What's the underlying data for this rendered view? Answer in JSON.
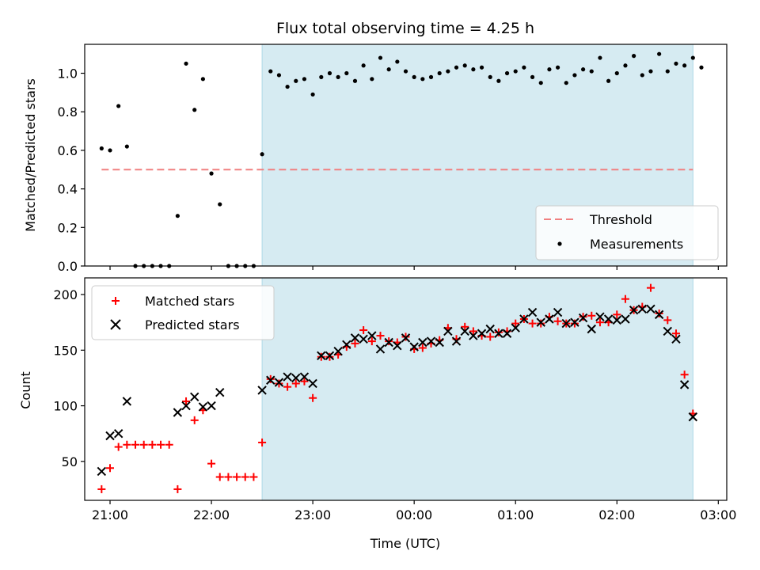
{
  "chart_data": [
    {
      "type": "scatter",
      "title": "Flux total observing time = 4.25 h",
      "xlabel": "",
      "ylabel": "Matched/Predicted stars",
      "ylim": [
        0,
        1.15
      ],
      "yticks": [
        "0.0",
        "0.2",
        "0.4",
        "0.6",
        "0.8",
        "1.0"
      ],
      "xlim": [
        "20:45",
        "03:05"
      ],
      "observing_window": [
        "22:30",
        "02:45"
      ],
      "legend_position": "lower-right",
      "threshold": {
        "name": "Threshold",
        "value": 0.5,
        "x": [
          "20:55",
          "02:45"
        ],
        "color": "#f08080"
      },
      "series": [
        {
          "name": "Measurements",
          "color": "#000000",
          "points": [
            [
              "20:55",
              0.61
            ],
            [
              "21:00",
              0.6
            ],
            [
              "21:05",
              0.83
            ],
            [
              "21:10",
              0.62
            ],
            [
              "21:15",
              0.0
            ],
            [
              "21:20",
              0.0
            ],
            [
              "21:25",
              0.0
            ],
            [
              "21:30",
              0.0
            ],
            [
              "21:35",
              0.0
            ],
            [
              "21:40",
              0.26
            ],
            [
              "21:45",
              1.05
            ],
            [
              "21:50",
              0.81
            ],
            [
              "21:55",
              0.97
            ],
            [
              "22:00",
              0.48
            ],
            [
              "22:05",
              0.32
            ],
            [
              "22:10",
              0.0
            ],
            [
              "22:15",
              0.0
            ],
            [
              "22:20",
              0.0
            ],
            [
              "22:25",
              0.0
            ],
            [
              "22:30",
              0.58
            ],
            [
              "22:35",
              1.01
            ],
            [
              "22:40",
              0.99
            ],
            [
              "22:45",
              0.93
            ],
            [
              "22:50",
              0.96
            ],
            [
              "22:55",
              0.97
            ],
            [
              "23:00",
              0.89
            ],
            [
              "23:05",
              0.98
            ],
            [
              "23:10",
              1.0
            ],
            [
              "23:15",
              0.98
            ],
            [
              "23:20",
              1.0
            ],
            [
              "23:25",
              0.96
            ],
            [
              "23:30",
              1.04
            ],
            [
              "23:35",
              0.97
            ],
            [
              "23:40",
              1.08
            ],
            [
              "23:45",
              1.02
            ],
            [
              "23:50",
              1.06
            ],
            [
              "23:55",
              1.01
            ],
            [
              "00:00",
              0.98
            ],
            [
              "00:05",
              0.97
            ],
            [
              "00:10",
              0.98
            ],
            [
              "00:15",
              1.0
            ],
            [
              "00:20",
              1.01
            ],
            [
              "00:25",
              1.03
            ],
            [
              "00:30",
              1.04
            ],
            [
              "00:35",
              1.02
            ],
            [
              "00:40",
              1.03
            ],
            [
              "00:45",
              0.98
            ],
            [
              "00:50",
              0.96
            ],
            [
              "00:55",
              1.0
            ],
            [
              "01:00",
              1.01
            ],
            [
              "01:05",
              1.03
            ],
            [
              "01:10",
              0.98
            ],
            [
              "01:15",
              0.95
            ],
            [
              "01:20",
              1.02
            ],
            [
              "01:25",
              1.03
            ],
            [
              "01:30",
              0.95
            ],
            [
              "01:35",
              0.99
            ],
            [
              "01:40",
              1.02
            ],
            [
              "01:45",
              1.01
            ],
            [
              "01:50",
              1.08
            ],
            [
              "01:55",
              0.96
            ],
            [
              "02:00",
              1.0
            ],
            [
              "02:05",
              1.04
            ],
            [
              "02:10",
              1.09
            ],
            [
              "02:15",
              0.99
            ],
            [
              "02:20",
              1.01
            ],
            [
              "02:25",
              1.1
            ],
            [
              "02:30",
              1.01
            ],
            [
              "02:35",
              1.05
            ],
            [
              "02:40",
              1.04
            ],
            [
              "02:45",
              1.08
            ],
            [
              "02:50",
              1.03
            ]
          ]
        }
      ]
    },
    {
      "type": "scatter",
      "title": "",
      "xlabel": "Time (UTC)",
      "ylabel": "Count",
      "ylim": [
        15,
        215
      ],
      "yticks": [
        "50",
        "100",
        "150",
        "200"
      ],
      "xticks": [
        "21:00",
        "22:00",
        "23:00",
        "00:00",
        "01:00",
        "02:00",
        "03:00"
      ],
      "xlim": [
        "20:45",
        "03:05"
      ],
      "observing_window": [
        "22:30",
        "02:45"
      ],
      "legend_position": "upper-left",
      "series": [
        {
          "name": "Matched stars",
          "marker": "plus",
          "color": "#ff0000",
          "points": [
            [
              "20:55",
              25
            ],
            [
              "21:00",
              44
            ],
            [
              "21:05",
              63
            ],
            [
              "21:10",
              65
            ],
            [
              "21:15",
              65
            ],
            [
              "21:20",
              65
            ],
            [
              "21:25",
              65
            ],
            [
              "21:30",
              65
            ],
            [
              "21:35",
              65
            ],
            [
              "21:40",
              25
            ],
            [
              "21:45",
              104
            ],
            [
              "21:50",
              87
            ],
            [
              "21:55",
              96
            ],
            [
              "22:00",
              48
            ],
            [
              "22:05",
              36
            ],
            [
              "22:10",
              36
            ],
            [
              "22:15",
              36
            ],
            [
              "22:20",
              36
            ],
            [
              "22:25",
              36
            ],
            [
              "22:30",
              67
            ],
            [
              "22:35",
              124
            ],
            [
              "22:40",
              120
            ],
            [
              "22:45",
              117
            ],
            [
              "22:50",
              120
            ],
            [
              "22:55",
              122
            ],
            [
              "23:00",
              107
            ],
            [
              "23:05",
              144
            ],
            [
              "23:10",
              144
            ],
            [
              "23:15",
              146
            ],
            [
              "23:20",
              153
            ],
            [
              "23:25",
              156
            ],
            [
              "23:30",
              168
            ],
            [
              "23:35",
              158
            ],
            [
              "23:40",
              163
            ],
            [
              "23:45",
              158
            ],
            [
              "23:50",
              157
            ],
            [
              "23:55",
              162
            ],
            [
              "00:00",
              151
            ],
            [
              "00:05",
              152
            ],
            [
              "00:10",
              156
            ],
            [
              "00:15",
              159
            ],
            [
              "00:20",
              170
            ],
            [
              "00:25",
              160
            ],
            [
              "00:30",
              171
            ],
            [
              "00:35",
              167
            ],
            [
              "00:40",
              163
            ],
            [
              "00:45",
              162
            ],
            [
              "00:50",
              166
            ],
            [
              "00:55",
              167
            ],
            [
              "01:00",
              174
            ],
            [
              "01:05",
              178
            ],
            [
              "01:10",
              174
            ],
            [
              "01:15",
              174
            ],
            [
              "01:20",
              180
            ],
            [
              "01:25",
              176
            ],
            [
              "01:30",
              174
            ],
            [
              "01:35",
              174
            ],
            [
              "01:40",
              180
            ],
            [
              "01:45",
              181
            ],
            [
              "01:50",
              175
            ],
            [
              "01:55",
              175
            ],
            [
              "02:00",
              182
            ],
            [
              "02:05",
              196
            ],
            [
              "02:10",
              186
            ],
            [
              "02:15",
              189
            ],
            [
              "02:20",
              206
            ],
            [
              "02:25",
              183
            ],
            [
              "02:30",
              177
            ],
            [
              "02:35",
              165
            ],
            [
              "02:40",
              128
            ],
            [
              "02:45",
              93
            ]
          ]
        },
        {
          "name": "Predicted stars",
          "marker": "x",
          "color": "#000000",
          "points": [
            [
              "20:55",
              41
            ],
            [
              "21:00",
              73
            ],
            [
              "21:05",
              75
            ],
            [
              "21:10",
              104
            ],
            [
              "21:40",
              94
            ],
            [
              "21:45",
              100
            ],
            [
              "21:50",
              108
            ],
            [
              "21:55",
              99
            ],
            [
              "22:00",
              100
            ],
            [
              "22:05",
              112
            ],
            [
              "22:30",
              114
            ],
            [
              "22:35",
              123
            ],
            [
              "22:40",
              121
            ],
            [
              "22:45",
              126
            ],
            [
              "22:50",
              125
            ],
            [
              "22:55",
              126
            ],
            [
              "23:00",
              120
            ],
            [
              "23:05",
              145
            ],
            [
              "23:10",
              145
            ],
            [
              "23:15",
              149
            ],
            [
              "23:20",
              155
            ],
            [
              "23:25",
              161
            ],
            [
              "23:30",
              160
            ],
            [
              "23:35",
              163
            ],
            [
              "23:40",
              151
            ],
            [
              "23:45",
              157
            ],
            [
              "23:50",
              154
            ],
            [
              "23:55",
              161
            ],
            [
              "00:00",
              153
            ],
            [
              "00:05",
              157
            ],
            [
              "00:10",
              158
            ],
            [
              "00:15",
              157
            ],
            [
              "00:20",
              167
            ],
            [
              "00:25",
              158
            ],
            [
              "00:30",
              167
            ],
            [
              "00:35",
              163
            ],
            [
              "00:40",
              165
            ],
            [
              "00:45",
              169
            ],
            [
              "00:50",
              165
            ],
            [
              "00:55",
              165
            ],
            [
              "01:00",
              170
            ],
            [
              "01:05",
              178
            ],
            [
              "01:10",
              184
            ],
            [
              "01:15",
              175
            ],
            [
              "01:20",
              178
            ],
            [
              "01:25",
              184
            ],
            [
              "01:30",
              174
            ],
            [
              "01:35",
              175
            ],
            [
              "01:40",
              179
            ],
            [
              "01:45",
              169
            ],
            [
              "01:50",
              180
            ],
            [
              "01:55",
              178
            ],
            [
              "02:00",
              177
            ],
            [
              "02:05",
              178
            ],
            [
              "02:10",
              186
            ],
            [
              "02:15",
              187
            ],
            [
              "02:20",
              187
            ],
            [
              "02:25",
              182
            ],
            [
              "02:30",
              167
            ],
            [
              "02:35",
              160
            ],
            [
              "02:40",
              119
            ],
            [
              "02:45",
              90
            ]
          ]
        }
      ]
    }
  ]
}
